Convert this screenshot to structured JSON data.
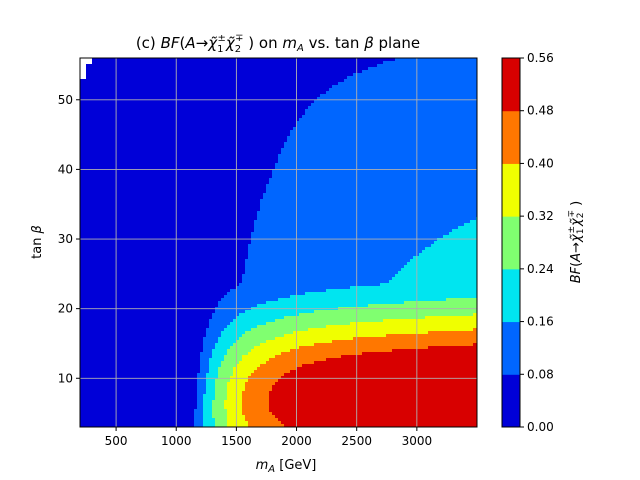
{
  "chart_data": {
    "type": "heatmap",
    "title": "(c) BF(A→χ̃₁±χ̃₂∓) on m_A vs. tan β plane",
    "title_parts": {
      "prefix": "(c) ",
      "func": "BF",
      "lparen": "(",
      "A": "A",
      "arrow": "→",
      "chi": "χ̃",
      "sub1": "1",
      "sup1": "±",
      "sub2": "2",
      "sup2": "∓",
      "rparen": " )",
      "on": " on ",
      "mA_m": "m",
      "mA_sub": "A",
      "vs": " vs. tan ",
      "beta": "β",
      "plane": " plane"
    },
    "xlabel": "m_A [GeV]",
    "xlabel_parts": {
      "m": "m",
      "sub": "A",
      "unit": " [GeV]"
    },
    "ylabel": "tan β",
    "ylabel_parts": {
      "tan": "tan ",
      "beta": "β"
    },
    "colorbar_label": "BF(A→χ̃₁±χ̃₂∓)",
    "xlim": [
      200,
      3500
    ],
    "ylim": [
      3,
      56
    ],
    "xticks": [
      {
        "value": 500,
        "label": "500"
      },
      {
        "value": 1000,
        "label": "1000"
      },
      {
        "value": 1500,
        "label": "1500"
      },
      {
        "value": 2000,
        "label": "2000"
      },
      {
        "value": 2500,
        "label": "2500"
      },
      {
        "value": 3000,
        "label": "3000"
      }
    ],
    "yticks": [
      {
        "value": 10,
        "label": "10"
      },
      {
        "value": 20,
        "label": "20"
      },
      {
        "value": 30,
        "label": "30"
      },
      {
        "value": 40,
        "label": "40"
      },
      {
        "value": 50,
        "label": "50"
      }
    ],
    "grid": true,
    "colorbar_levels": [
      0.0,
      0.08,
      0.16,
      0.24,
      0.32,
      0.4,
      0.48,
      0.56
    ],
    "colorbar_ticks": [
      "0.00",
      "0.08",
      "0.16",
      "0.24",
      "0.32",
      "0.40",
      "0.48",
      "0.56"
    ],
    "colors": [
      "#0000d8",
      "#0066ff",
      "#00e5f0",
      "#80ff70",
      "#f0ff00",
      "#ff7700",
      "#d80000"
    ],
    "no_data_color": "#ffffff"
  }
}
